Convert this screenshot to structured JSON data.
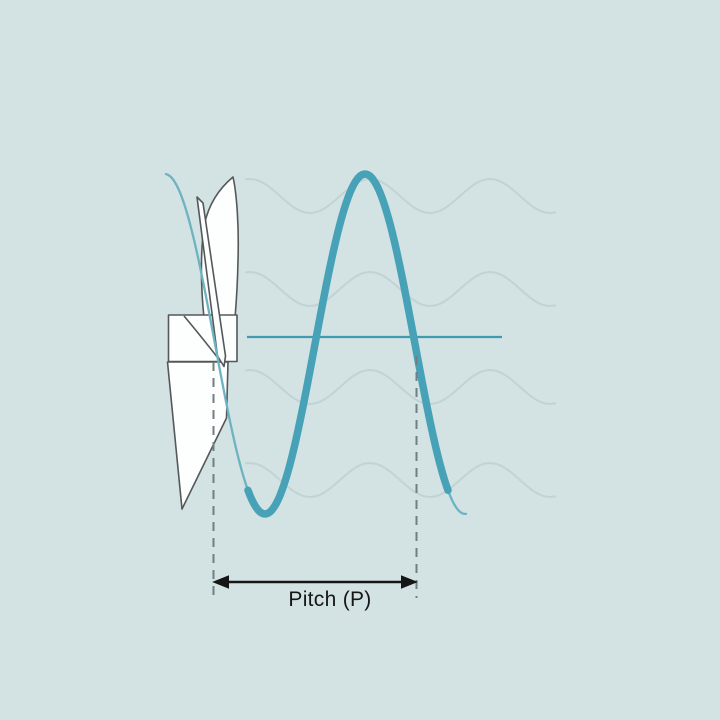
{
  "diagram": {
    "name": "propeller-pitch-diagram",
    "labels": {
      "pitch": "Pitch (P)"
    },
    "colors": {
      "background": "#d3e2e2",
      "wave_main": "#47a2b7",
      "wave_thin": "#6db3c2",
      "reference_line": "#3f9cb0",
      "faint_wave": "#bed0d3",
      "blade_fill": "#fdfefe",
      "blade_outline": "#54585a",
      "dashed_line": "#6f7f82",
      "annotation": "#161616"
    }
  }
}
